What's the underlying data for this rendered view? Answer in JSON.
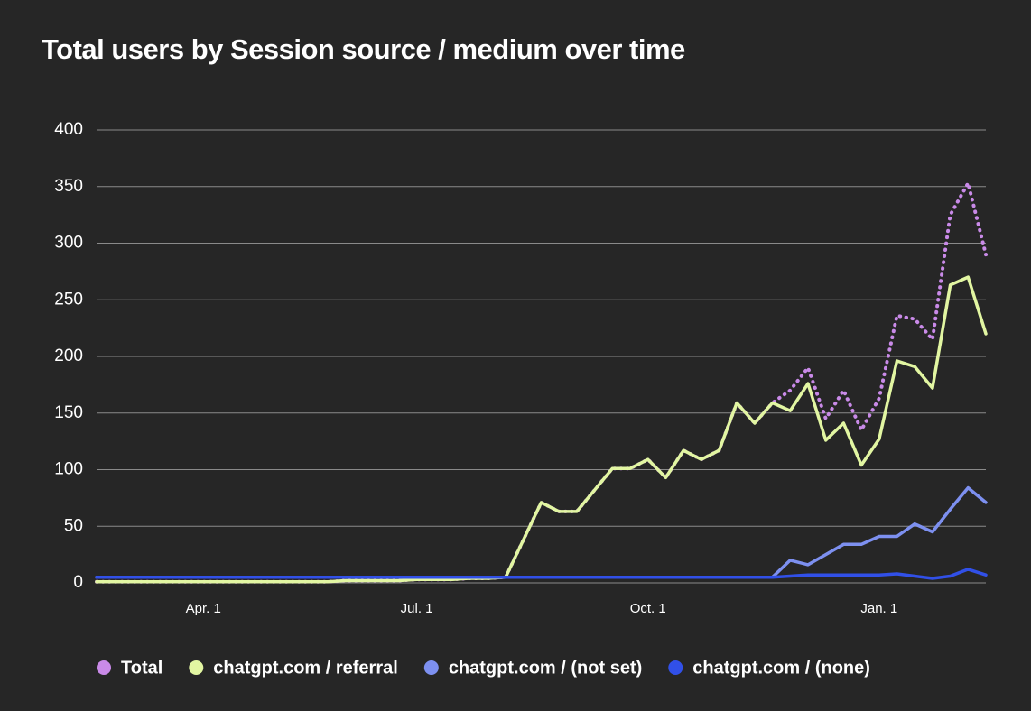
{
  "chart_data": {
    "type": "line",
    "title": "Total users by Session source / medium over time",
    "categories": [
      null,
      null,
      null,
      null,
      null,
      null,
      "Apr. 1",
      null,
      null,
      null,
      null,
      null,
      null,
      null,
      null,
      null,
      null,
      null,
      "Jul. 1",
      null,
      null,
      null,
      null,
      null,
      null,
      null,
      null,
      null,
      null,
      null,
      null,
      "Oct. 1",
      null,
      null,
      null,
      null,
      null,
      null,
      null,
      null,
      null,
      null,
      null,
      null,
      "Jan. 1",
      null,
      null,
      null,
      null,
      null,
      null
    ],
    "series": [
      {
        "name": "Total",
        "color": "#c98ae8",
        "dashed": true,
        "values": [
          1,
          1,
          1,
          1,
          1,
          1,
          1,
          1,
          1,
          1,
          1,
          1,
          1,
          1,
          2,
          2,
          2,
          2,
          3,
          3,
          3,
          4,
          4,
          5,
          38,
          71,
          63,
          63,
          82,
          101,
          101,
          109,
          93,
          117,
          109,
          117,
          159,
          141,
          159,
          170,
          190,
          145,
          170,
          135,
          163,
          236,
          233,
          215,
          325,
          353,
          290
        ]
      },
      {
        "name": "chatgpt.com / referral",
        "color": "#e2f6a2",
        "values": [
          1,
          1,
          1,
          1,
          1,
          1,
          1,
          1,
          1,
          1,
          1,
          1,
          1,
          1,
          2,
          2,
          2,
          2,
          3,
          3,
          3,
          4,
          4,
          5,
          38,
          71,
          63,
          63,
          82,
          101,
          101,
          109,
          93,
          117,
          109,
          117,
          159,
          141,
          159,
          152,
          176,
          126,
          141,
          104,
          127,
          196,
          191,
          172,
          263,
          270,
          220
        ]
      },
      {
        "name": "chatgpt.com / (not set)",
        "color": "#7d90f0",
        "values": [
          5,
          5,
          5,
          5,
          5,
          5,
          5,
          5,
          5,
          5,
          5,
          5,
          5,
          5,
          5,
          5,
          5,
          5,
          5,
          5,
          5,
          5,
          5,
          5,
          5,
          5,
          5,
          5,
          5,
          5,
          5,
          5,
          5,
          5,
          5,
          5,
          5,
          5,
          5,
          20,
          16,
          25,
          34,
          34,
          41,
          41,
          52,
          45,
          65,
          84,
          71
        ]
      },
      {
        "name": "chatgpt.com / (none)",
        "color": "#3150e8",
        "values": [
          5,
          5,
          5,
          5,
          5,
          5,
          5,
          5,
          5,
          5,
          5,
          5,
          5,
          5,
          5,
          5,
          5,
          5,
          5,
          5,
          5,
          5,
          5,
          5,
          5,
          5,
          5,
          5,
          5,
          5,
          5,
          5,
          5,
          5,
          5,
          5,
          5,
          5,
          5,
          6,
          7,
          7,
          7,
          7,
          7,
          8,
          6,
          4,
          6,
          12,
          7
        ]
      }
    ],
    "ylim": [
      0,
      400
    ],
    "yticks": [
      0,
      50,
      100,
      150,
      200,
      250,
      300,
      350,
      400
    ],
    "grid": true,
    "legend": "bottom"
  }
}
